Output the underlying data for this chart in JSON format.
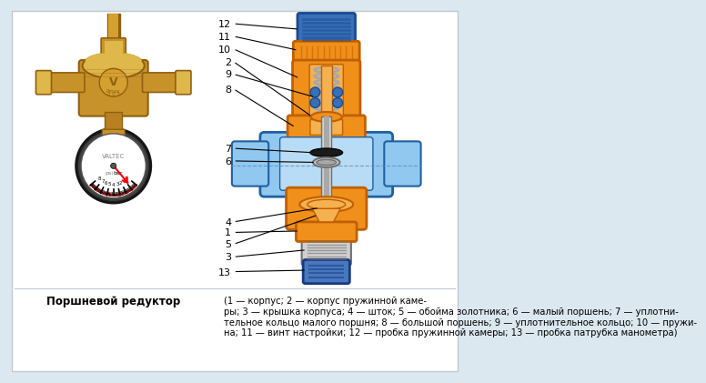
{
  "bg_color": "#dce8f0",
  "white_bg": "#ffffff",
  "title_bold": "Поршневой редуктор",
  "caption_line1": "(1 — корпус; 2 — корпус пружинной каме-",
  "caption_line2": "ры; 3 — крышка корпуса; 4 — шток; 5 — обойма золотника; 6 — малый поршень; 7 — уплотни-",
  "caption_line3": "тельное кольцо малого поршня; 8 — большой поршень; 9 — уплотнительное кольцо; 10 — пружи-",
  "caption_line4": "на; 11 — винт настройки; 12 — пробка пружинной камеры; 13 — пробка патрубка манометра)",
  "orange": "#F0901A",
  "orange_light": "#F5B050",
  "orange_dark": "#C06000",
  "blue_cap": "#3870B8",
  "blue_cap_dark": "#1A4A90",
  "blue_body": "#5AAAE0",
  "blue_body_light": "#90C8F0",
  "blue_body_dark": "#2060A0",
  "blue_bot": "#4878C0",
  "blue_bot_dark": "#1A3A80",
  "silver": "#A8A8A8",
  "silver_light": "#D0D0D0",
  "silver_dark": "#707070",
  "brass": "#C8922A",
  "brass_light": "#DEB84A",
  "brass_dark": "#906010",
  "brass_mid": "#D4A030"
}
